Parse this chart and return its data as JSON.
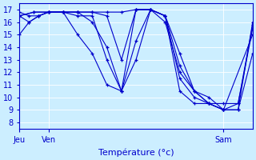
{
  "xlabel": "Température (°c)",
  "bg_color": "#cceeff",
  "line_color": "#0000cc",
  "marker": "+",
  "ylim": [
    7.5,
    17.5
  ],
  "yticks": [
    8,
    9,
    10,
    11,
    12,
    13,
    14,
    15,
    16,
    17
  ],
  "xlim": [
    0,
    48
  ],
  "x_tick_positions": [
    0,
    6,
    42
  ],
  "x_tick_labels": [
    "Jeu",
    "Ven",
    "Sam"
  ],
  "series": [
    {
      "x": [
        0,
        3,
        6,
        9,
        12,
        15,
        18,
        21,
        24,
        27,
        30,
        33,
        36,
        39,
        42,
        45,
        48
      ],
      "y": [
        16.5,
        16.8,
        16.8,
        16.8,
        16.8,
        16.8,
        16.8,
        16.8,
        17.0,
        17.0,
        16.5,
        13.5,
        10.5,
        9.5,
        9.0,
        9.0,
        16.0
      ]
    },
    {
      "x": [
        0,
        3,
        6,
        9,
        12,
        15,
        18,
        21,
        24,
        27,
        30,
        33,
        36,
        39,
        42,
        45,
        48
      ],
      "y": [
        16.5,
        16.8,
        16.8,
        16.8,
        16.8,
        16.8,
        16.5,
        13.0,
        17.0,
        17.0,
        16.5,
        12.5,
        10.5,
        9.5,
        9.0,
        9.5,
        15.8
      ]
    },
    {
      "x": [
        0,
        2,
        4,
        6,
        9,
        12,
        15,
        18,
        21,
        24,
        27,
        30,
        33,
        36,
        39,
        42,
        45,
        48
      ],
      "y": [
        15.0,
        16.0,
        16.5,
        16.8,
        16.8,
        16.8,
        16.0,
        14.0,
        10.5,
        17.0,
        17.0,
        16.0,
        12.0,
        10.5,
        10.0,
        9.0,
        9.0,
        13.5
      ]
    },
    {
      "x": [
        0,
        2,
        4,
        6,
        9,
        12,
        15,
        18,
        21,
        24,
        27,
        30,
        33,
        36,
        39,
        42,
        48
      ],
      "y": [
        16.8,
        16.5,
        16.5,
        16.8,
        16.8,
        15.0,
        13.5,
        11.0,
        10.5,
        14.5,
        17.0,
        16.5,
        11.5,
        10.0,
        9.5,
        9.0,
        15.0
      ]
    },
    {
      "x": [
        0,
        2,
        4,
        6,
        9,
        12,
        15,
        18,
        21,
        24,
        27,
        30,
        33,
        36,
        39,
        42,
        45,
        48
      ],
      "y": [
        16.5,
        16.0,
        16.5,
        16.8,
        16.8,
        16.5,
        16.5,
        13.0,
        10.5,
        13.0,
        17.0,
        16.5,
        10.5,
        9.5,
        9.5,
        9.5,
        9.5,
        15.5
      ]
    }
  ]
}
